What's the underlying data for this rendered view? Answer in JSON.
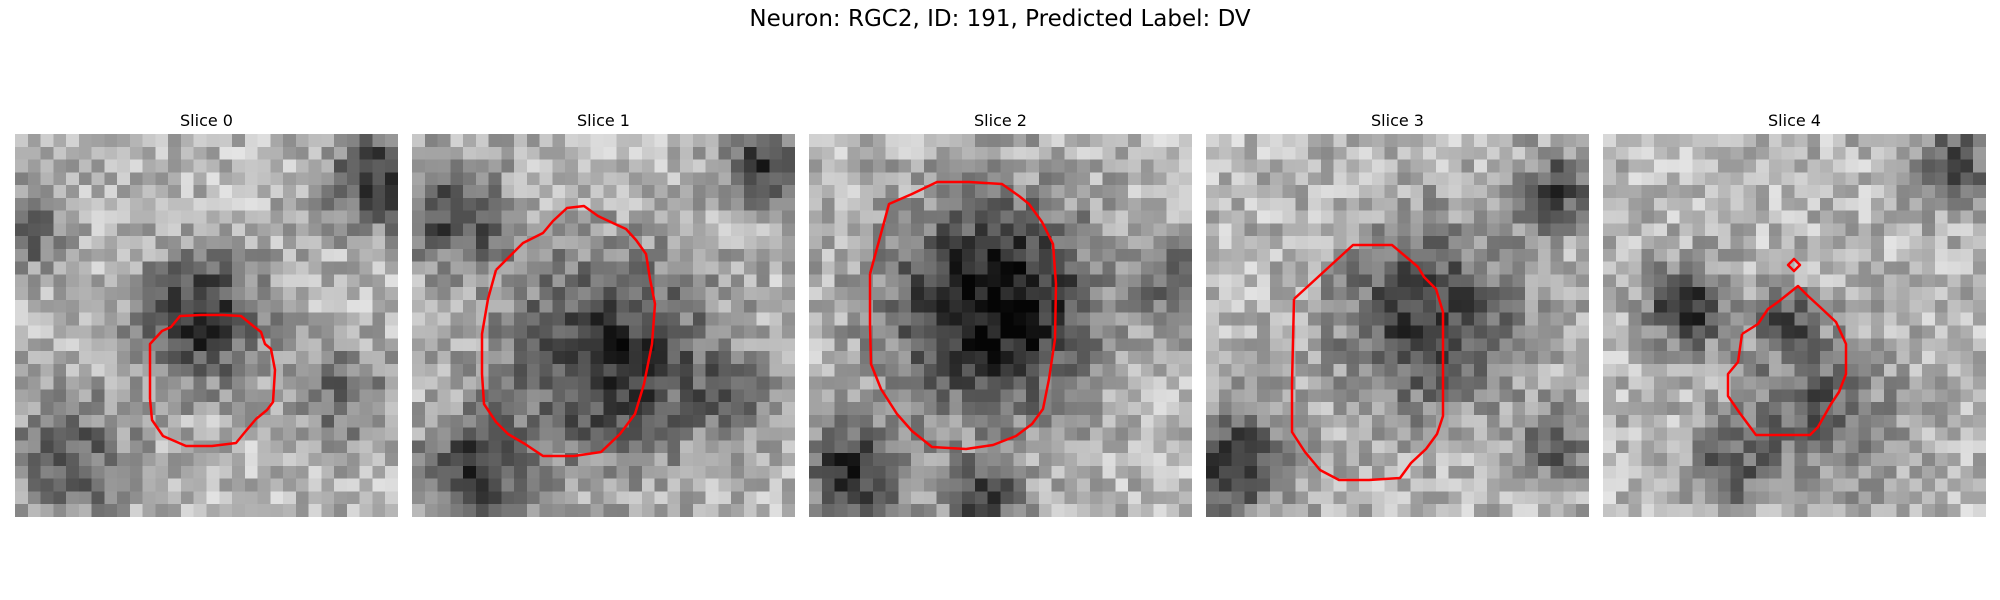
{
  "figure": {
    "title": "Neuron: RGC2, ID: 191, Predicted Label: DV",
    "colors": {
      "background": "#ffffff",
      "contour": "#ff0000"
    },
    "colormap": "grayscale",
    "panels": [
      {
        "title": "Slice 0"
      },
      {
        "title": "Slice 1"
      },
      {
        "title": "Slice 2"
      },
      {
        "title": "Slice 3"
      },
      {
        "title": "Slice 4"
      }
    ]
  }
}
